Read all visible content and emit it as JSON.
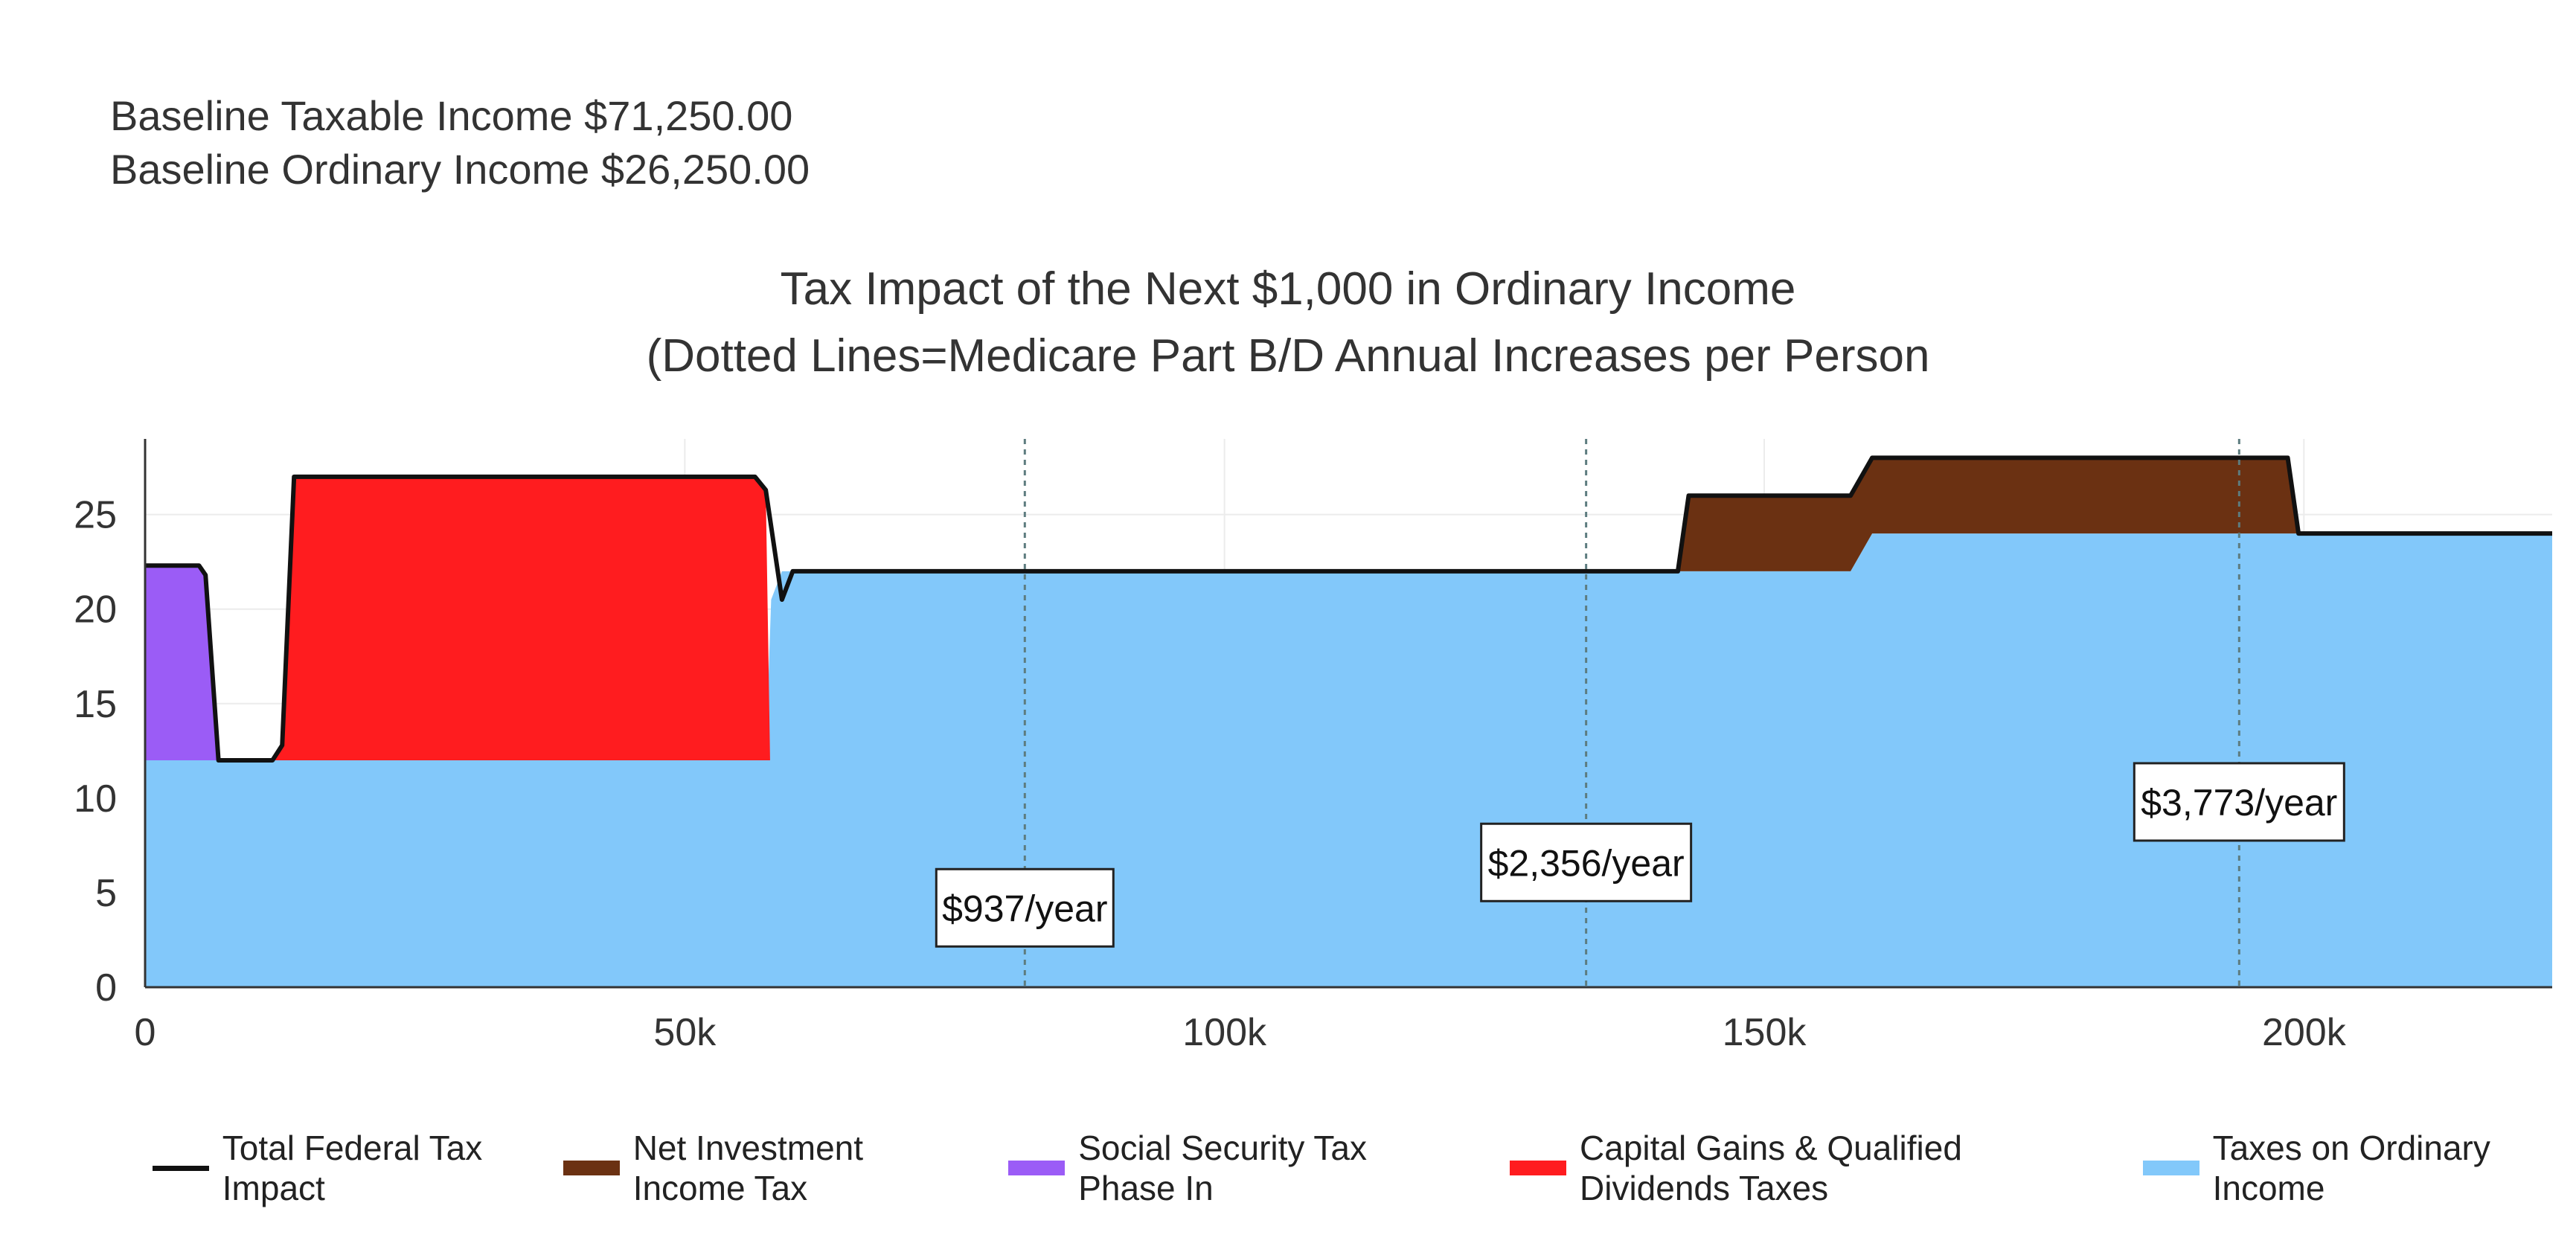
{
  "baseline": {
    "taxable": "Baseline Taxable Income $71,250.00",
    "ordinary": "Baseline Ordinary Income $26,250.00"
  },
  "title_line1": "Tax Impact of the Next $1,000 in Ordinary Income",
  "title_line2": "(Dotted Lines=Medicare Part B/D Annual Increases per Person",
  "chart_data": {
    "type": "area",
    "xlim": [
      0,
      223000
    ],
    "ylim": [
      0,
      29
    ],
    "x_ticks": [
      0,
      50000,
      100000,
      150000,
      200000
    ],
    "x_tick_labels": [
      "0",
      "50k",
      "100k",
      "150k",
      "200k"
    ],
    "y_ticks": [
      0,
      5,
      10,
      15,
      20,
      25
    ],
    "y_tick_labels": [
      "0",
      "5",
      "10",
      "15",
      "20",
      "25"
    ],
    "grid": true,
    "legend_position": "bottom",
    "series": [
      {
        "name": "Taxes on Ordinary Income",
        "color": "#82c8fa",
        "points": [
          [
            0,
            12
          ],
          [
            57500,
            12
          ],
          [
            58000,
            20.5
          ],
          [
            59000,
            22
          ],
          [
            158000,
            22
          ],
          [
            160000,
            24
          ],
          [
            223000,
            24
          ]
        ]
      },
      {
        "name": "Social Security Tax Phase In",
        "color": "#9b5cf6",
        "bands": [
          [
            0,
            22.3,
            12
          ],
          [
            5000,
            22.3,
            12
          ],
          [
            5600,
            21.8,
            12
          ],
          [
            6800,
            12,
            12
          ]
        ]
      },
      {
        "name": "Capital Gains & Qualified Dividends Taxes",
        "color": "#ff1c1f",
        "bands": [
          [
            11800,
            12,
            12
          ],
          [
            12700,
            12.8,
            12
          ],
          [
            13800,
            27,
            12
          ],
          [
            56500,
            27,
            12
          ],
          [
            57500,
            26.3,
            12
          ],
          [
            57900,
            12,
            12
          ]
        ]
      },
      {
        "name": "Net Investment Income Tax",
        "color": "#6b3112",
        "bands": [
          [
            142000,
            22,
            22
          ],
          [
            143000,
            26,
            22
          ],
          [
            158000,
            26,
            22
          ],
          [
            160000,
            28,
            24
          ],
          [
            198500,
            28,
            24
          ],
          [
            199500,
            24,
            24
          ]
        ]
      },
      {
        "name": "Total Federal Tax Impact",
        "color": "#111111",
        "points": [
          [
            0,
            22.3
          ],
          [
            5000,
            22.3
          ],
          [
            5600,
            21.8
          ],
          [
            6800,
            12
          ],
          [
            11800,
            12
          ],
          [
            12700,
            12.8
          ],
          [
            13800,
            27
          ],
          [
            56500,
            27
          ],
          [
            57500,
            26.3
          ],
          [
            59000,
            20.5
          ],
          [
            60000,
            22
          ],
          [
            142000,
            22
          ],
          [
            143000,
            26
          ],
          [
            158000,
            26
          ],
          [
            160000,
            28
          ],
          [
            198500,
            28
          ],
          [
            199500,
            24
          ],
          [
            223000,
            24
          ]
        ]
      }
    ],
    "annotations": [
      {
        "x": 81500,
        "label": "$937/year",
        "label_y": 4.2
      },
      {
        "x": 133500,
        "label": "$2,356/year",
        "label_y": 6.6
      },
      {
        "x": 194000,
        "label": "$3,773/year",
        "label_y": 9.8
      }
    ]
  },
  "legend": [
    {
      "label": "Total Federal Tax Impact",
      "color": "#111111",
      "kind": "line"
    },
    {
      "label": "Net Investment Income Tax",
      "color": "#6b3112",
      "kind": "area"
    },
    {
      "label": "Social Security Tax Phase In",
      "color": "#9b5cf6",
      "kind": "area"
    },
    {
      "label": "Capital Gains & Qualified Dividends Taxes",
      "color": "#ff1c1f",
      "kind": "area"
    },
    {
      "label": "Taxes on Ordinary Income",
      "color": "#82c8fa",
      "kind": "area"
    }
  ]
}
